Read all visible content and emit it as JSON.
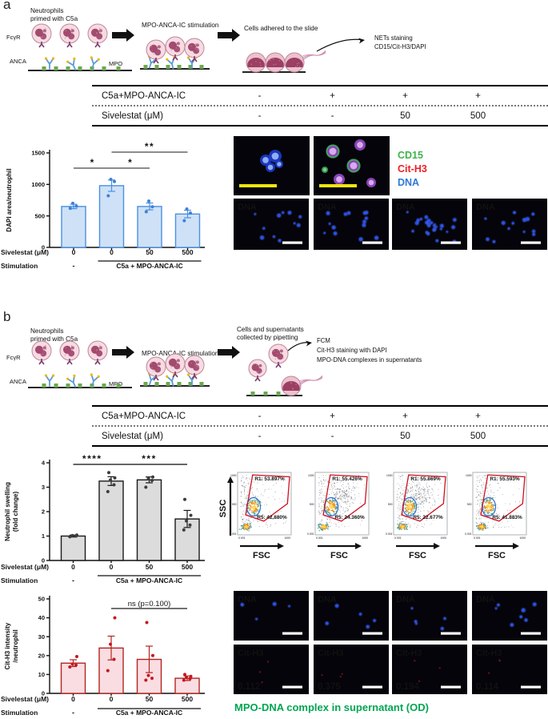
{
  "panel_a": {
    "label": "a",
    "schematic": {
      "step1_line1": "Neutrophils",
      "step1_line2": "primed with C5a",
      "receptor": "FcγR",
      "anca": "ANCA",
      "mpo": "MPO",
      "step2": "MPO-ANCA-IC stimulation",
      "step3": "Cells adhered to the slide",
      "note_line1": "NETs staining",
      "note_line2": "CD15/Cit-H3/DAPI"
    },
    "table": {
      "rows": [
        {
          "label": "C5a+MPO-ANCA-IC",
          "values": [
            "-",
            "+",
            "+",
            "+"
          ]
        },
        {
          "label": "Sivelestat (μM)",
          "values": [
            "-",
            "-",
            "50",
            "500"
          ]
        }
      ]
    },
    "microscopy": {
      "legend": [
        {
          "label": "CD15",
          "color": "#3cb54a"
        },
        {
          "label": "Cit-H3",
          "color": "#ec2024"
        },
        {
          "label": "DNA",
          "color": "#2e7ad6"
        }
      ],
      "image_label": "DNA",
      "image_label_color": "#3e72c8"
    }
  },
  "panel_b": {
    "label": "b",
    "schematic": {
      "step1_line1": "Neutrophils",
      "step1_line2": "primed with C5a",
      "receptor": "FcγR",
      "anca": "ANCA",
      "mpo": "MPO",
      "step2": "MPO-ANCA-IC stimulation",
      "step3_line1": "Cells and supernatants",
      "step3_line2": "collected by pipetting",
      "note_line1": "FCM",
      "note_line2": "Cit-H3 staining with DAPI",
      "note_line3": "MPO-DNA complexes in supernatants"
    },
    "table": {
      "rows": [
        {
          "label": "C5a+MPO-ANCA-IC",
          "values": [
            "-",
            "+",
            "+",
            "+"
          ]
        },
        {
          "label": "Sivelestat (μM)",
          "values": [
            "-",
            "-",
            "50",
            "500"
          ]
        }
      ]
    },
    "fcm": {
      "ylabel": "SSC",
      "xlabel": "FSC",
      "yticks": [
        "1000",
        "500",
        "0.001"
      ],
      "xticks": [
        "0.001",
        "1000"
      ],
      "r1_color": "#cf1020",
      "r5_color": "#1f66cc",
      "plots": [
        {
          "r1": "R1: 53.897%",
          "r5": "R5: 42.880%"
        },
        {
          "r1": "R1: 55.426%",
          "r5": "R5: 24.360%"
        },
        {
          "r1": "R1: 55.869%",
          "r5": "R5: 22.677%"
        },
        {
          "r1": "R1: 55.593%",
          "r5": "R5: 41.883%"
        }
      ]
    },
    "microscopy": {
      "dna_label": "DNA",
      "dna_label_color": "#3e72c8",
      "cith3_label": "Cit-H3",
      "cith3_label_color": "#e8232a",
      "od_values": [
        "0.112",
        "0.375",
        "0.194",
        "0.114"
      ],
      "od_color": "#3cb54a",
      "caption": "MPO-DNA complex in supernatant (OD)",
      "caption_color": "#00a651"
    }
  },
  "chart_data": [
    {
      "id": "chart_dapi",
      "panel": "a",
      "type": "bar",
      "ylabel": "DAPI area/neutrophil",
      "ylim": [
        0,
        1500
      ],
      "yticks": [
        0,
        500,
        1000,
        1500
      ],
      "values": [
        650,
        980,
        650,
        530
      ],
      "errors": [
        35,
        90,
        55,
        60
      ],
      "points": [
        [
          620,
          655,
          700
        ],
        [
          820,
          1045,
          1080
        ],
        [
          565,
          645,
          735
        ],
        [
          425,
          545,
          610
        ]
      ],
      "x_row1_label": "Sivelestat (μM)",
      "x_row1": [
        "0",
        "0",
        "50",
        "500"
      ],
      "x_row2_label": "Stimulation",
      "x_row2_group1": "-",
      "x_row2_group2": "C5a + MPO-ANCA-IC",
      "bar_fill": "#cfe1f6",
      "bar_stroke": "#4a90e2",
      "dot_color": "#3f7fdb",
      "significance": [
        {
          "from": 0,
          "to": 1,
          "label": "*",
          "level": 0
        },
        {
          "from": 1,
          "to": 2,
          "label": "*",
          "level": 0
        },
        {
          "from": 1,
          "to": 3,
          "label": "**",
          "level": 1
        }
      ]
    },
    {
      "id": "chart_swelling",
      "panel": "b",
      "type": "bar",
      "ylabel_lines": [
        "Neutrophil swelling",
        "(fold change)"
      ],
      "ylim": [
        0,
        4
      ],
      "yticks": [
        0,
        1,
        2,
        3,
        4
      ],
      "values": [
        1.0,
        3.25,
        3.3,
        1.7
      ],
      "errors": [
        0.04,
        0.18,
        0.12,
        0.35
      ],
      "points": [
        [
          0.97,
          1.0,
          1.02,
          1.04
        ],
        [
          2.82,
          3.1,
          3.3,
          3.38,
          3.6
        ],
        [
          3.0,
          3.28,
          3.35,
          3.42
        ],
        [
          1.25,
          1.45,
          1.62,
          1.85,
          2.5
        ]
      ],
      "x_row1_label": "Sivelestat (μM)",
      "x_row1": [
        "0",
        "0",
        "50",
        "500"
      ],
      "x_row2_label": "Stimulation",
      "x_row2_group1": "-",
      "x_row2_group2": "C5a + MPO-ANCA-IC",
      "bar_fill": "#dcdcdc",
      "bar_stroke": "#1a1a1a",
      "dot_color": "#3c3c3c",
      "significance": [
        {
          "from": 0,
          "to": 1,
          "label": "****",
          "level": 0
        },
        {
          "from": 1,
          "to": 3,
          "label": "***",
          "level": 0
        }
      ]
    },
    {
      "id": "chart_cith3",
      "panel": "b",
      "type": "bar",
      "ylabel_lines": [
        "Cit-H3 intensity",
        "/neutrophil"
      ],
      "ylim": [
        0,
        50
      ],
      "yticks": [
        0,
        10,
        20,
        30,
        40,
        50
      ],
      "values": [
        16,
        24,
        18,
        8
      ],
      "errors": [
        1.8,
        6.3,
        7,
        1.2
      ],
      "points": [
        [
          14,
          15,
          15.5,
          19.5
        ],
        [
          12,
          18,
          26,
          40
        ],
        [
          7,
          8,
          9.5,
          20,
          37.5
        ],
        [
          7,
          7.8,
          8.4,
          9,
          10
        ]
      ],
      "x_row1_label": "Sivelestat (μM)",
      "x_row1": [
        "0",
        "0",
        "50",
        "500"
      ],
      "x_row2_label": "Stimulation",
      "x_row2_group1": "-",
      "x_row2_group2": "C5a + MPO-ANCA-IC",
      "bar_fill": "#fadde2",
      "bar_stroke": "#b3251f",
      "dot_color": "#c21a22",
      "significance": [
        {
          "from": 1,
          "to": 3,
          "label": "ns (p=0.100)",
          "level": 0
        }
      ]
    },
    {
      "id": "fcm_gates",
      "panel": "b",
      "type": "scatter",
      "xlabel": "FSC",
      "ylabel": "SSC",
      "gates": [
        {
          "r1_percent": 53.897,
          "r5_percent": 42.88
        },
        {
          "r1_percent": 55.426,
          "r5_percent": 24.36
        },
        {
          "r1_percent": 55.869,
          "r5_percent": 22.677
        },
        {
          "r1_percent": 55.593,
          "r5_percent": 41.883
        }
      ]
    }
  ]
}
